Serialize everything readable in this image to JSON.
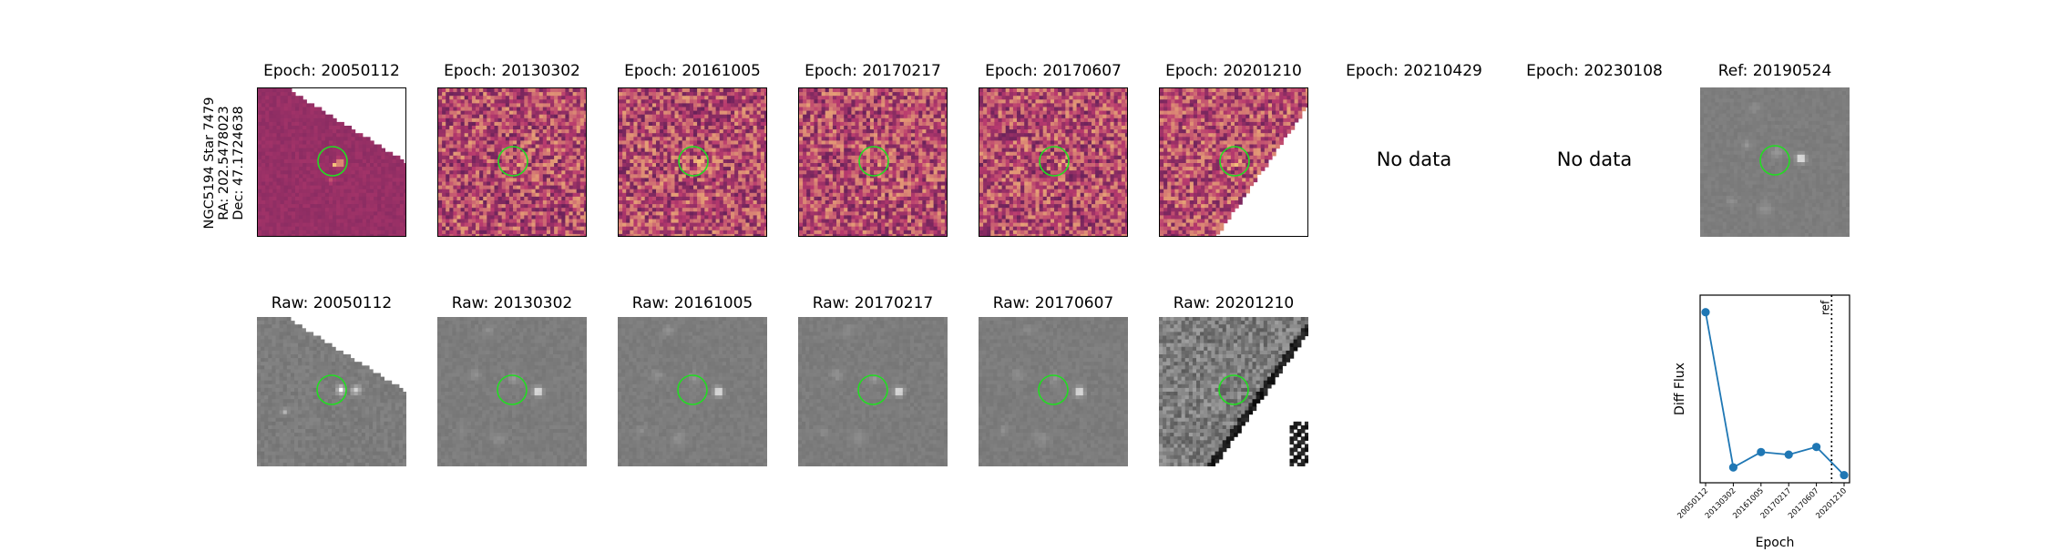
{
  "star": {
    "name": "NGC5194 Star 7479",
    "ra": "RA: 202.5478023",
    "dec": "Dec: 47.1724638"
  },
  "diff_row": [
    {
      "title": "Epoch: 20050112",
      "kind": "diff-edge"
    },
    {
      "title": "Epoch: 20130302",
      "kind": "diff"
    },
    {
      "title": "Epoch: 20161005",
      "kind": "diff"
    },
    {
      "title": "Epoch: 20170217",
      "kind": "diff"
    },
    {
      "title": "Epoch: 20170607",
      "kind": "diff"
    },
    {
      "title": "Epoch: 20201210",
      "kind": "diff-edge2"
    },
    {
      "title": "Epoch: 20210429",
      "kind": "nodata",
      "text": "No data"
    },
    {
      "title": "Epoch: 20230108",
      "kind": "nodata",
      "text": "No data"
    },
    {
      "title": "Ref: 20190524",
      "kind": "ref"
    }
  ],
  "raw_row": [
    {
      "title": "Raw: 20050112"
    },
    {
      "title": "Raw: 20130302"
    },
    {
      "title": "Raw: 20161005"
    },
    {
      "title": "Raw: 20170217"
    },
    {
      "title": "Raw: 20170607"
    },
    {
      "title": "Raw: 20201210"
    }
  ],
  "colors": {
    "marker_circle": "#22dd22",
    "series_line": "#1f77b4",
    "diff_low": "#2b0f4a",
    "diff_mid": "#b83a6e",
    "diff_high": "#fbcf7a"
  },
  "chart_data": {
    "type": "line",
    "xlabel": "Epoch",
    "ylabel": "Diff Flux",
    "categories": [
      "20050112",
      "20130302",
      "20161005",
      "20170217",
      "20170607",
      "20201210"
    ],
    "series": [
      {
        "values": [
          1.0,
          0.09,
          0.18,
          0.165,
          0.21,
          0.045
        ]
      }
    ],
    "ylim": [
      0.0,
      1.1
    ],
    "reference_line": {
      "label": "ref",
      "after_category": "20170607",
      "style": "dotted"
    },
    "grid": false
  }
}
